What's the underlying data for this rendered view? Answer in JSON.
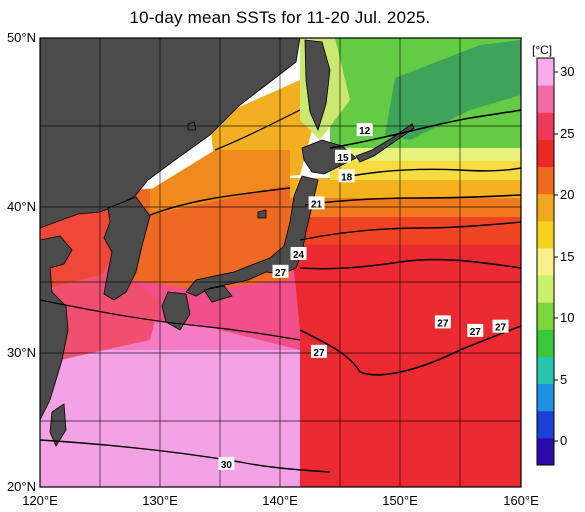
{
  "title": "10-day mean SSTs for 11-20 Jul. 2025.",
  "latitude_labels": [
    "50°N",
    "40°N",
    "30°N",
    "20°N"
  ],
  "longitude_labels": [
    "120°E",
    "130°E",
    "140°E",
    "150°E",
    "160°E"
  ],
  "colorbar": {
    "unit": "[°C]",
    "ticks": [
      "30",
      "25",
      "20",
      "15",
      "10",
      "5",
      "0"
    ],
    "colors": [
      "#2a0aa8",
      "#1c3fd8",
      "#1f8fe0",
      "#27c4b0",
      "#3bc83b",
      "#7ad83a",
      "#cdf06a",
      "#f8f08a",
      "#f6d21c",
      "#f2a81e",
      "#ee6a1c",
      "#ea2a22",
      "#ee3a5a",
      "#f06aa6",
      "#f8aaea"
    ]
  },
  "map": {
    "land_color": "#4b4b4b",
    "extent": {
      "lon_min": 120,
      "lon_max": 160,
      "lat_min": 20,
      "lat_max": 50
    },
    "isotherm_labels": [
      {
        "text": "12",
        "lon": 147.0,
        "lat": 44.8
      },
      {
        "text": "15",
        "lon": 145.2,
        "lat": 43.2
      },
      {
        "text": "18",
        "lon": 145.5,
        "lat": 42.0
      },
      {
        "text": "21",
        "lon": 143.0,
        "lat": 40.3
      },
      {
        "text": "24",
        "lon": 141.5,
        "lat": 37.0
      },
      {
        "text": "27",
        "lon": 140.0,
        "lat": 35.8
      },
      {
        "text": "27",
        "lon": 153.5,
        "lat": 32.3
      },
      {
        "text": "27",
        "lon": 156.2,
        "lat": 31.7
      },
      {
        "text": "27",
        "lon": 158.3,
        "lat": 32.0
      },
      {
        "text": "27",
        "lon": 143.2,
        "lat": 30.2
      },
      {
        "text": "30",
        "lon": 135.5,
        "lat": 21.8
      }
    ]
  }
}
